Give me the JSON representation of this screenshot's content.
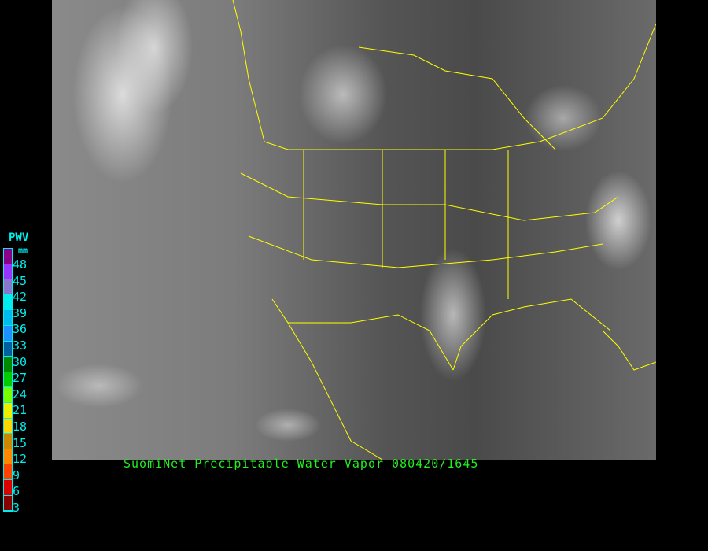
{
  "title": "SuomiNet Precipitable Water Vapor 080420/1645",
  "legend": {
    "title": "PWV",
    "unit": "mm",
    "labels": [
      "48",
      "45",
      "42",
      "39",
      "36",
      "33",
      "30",
      "27",
      "24",
      "21",
      "18",
      "15",
      "12",
      "9",
      "6",
      "3"
    ],
    "colors": [
      "#8b008b",
      "#9933ff",
      "#8877cc",
      "#00eeee",
      "#00bbee",
      "#1e90ff",
      "#00609f",
      "#008800",
      "#00cc00",
      "#77ff00",
      "#eeee00",
      "#ffd700",
      "#cc8800",
      "#ff8800",
      "#ff4400",
      "#dd0000",
      "#880000"
    ]
  },
  "map": {
    "boundary_color": "#ffff00"
  }
}
